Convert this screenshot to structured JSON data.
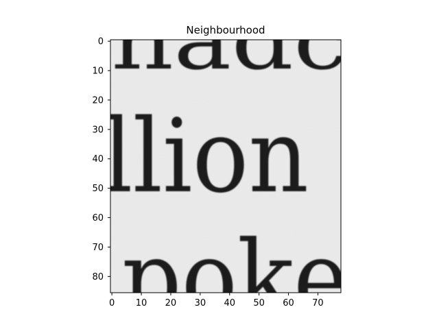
{
  "figure": {
    "title": "Neighbourhood",
    "y_ticks": [
      "0",
      "10",
      "20",
      "30",
      "40",
      "50",
      "60",
      "70",
      "80"
    ],
    "x_ticks": [
      "0",
      "10",
      "20",
      "30",
      "40",
      "50",
      "60",
      "70"
    ],
    "y_range": [
      0,
      85
    ],
    "x_range": [
      0,
      77
    ],
    "colormap": "gray",
    "background_color": "#ececec",
    "ink_color": "#1e1e1e"
  },
  "image_text": {
    "top_fragment": "nadc",
    "middle_word": "llion",
    "bottom_fragment": "poke"
  }
}
